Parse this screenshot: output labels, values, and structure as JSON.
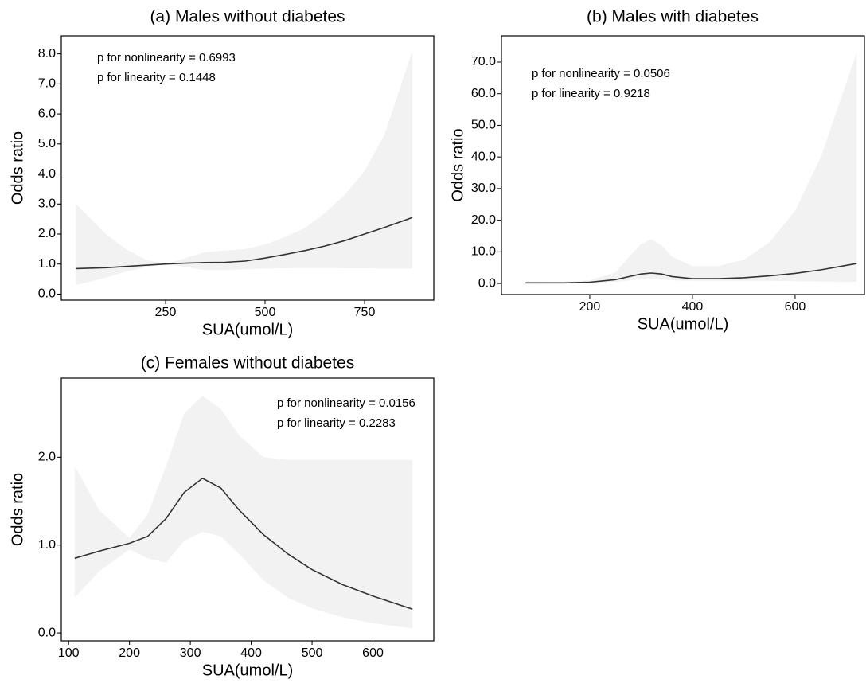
{
  "chart_data": [
    {
      "type": "line",
      "title": "(a) Males without diabetes",
      "x_label": "SUA(umol/L)",
      "y_label": "Odds ratio",
      "annotations": [
        "p for nonlinearity = 0.6993",
        "p for linearity = 0.1448"
      ],
      "x": [
        25,
        100,
        150,
        200,
        250,
        300,
        350,
        400,
        450,
        500,
        550,
        600,
        650,
        700,
        750,
        800,
        870
      ],
      "values": [
        0.85,
        0.88,
        0.92,
        0.96,
        1.0,
        1.03,
        1.05,
        1.06,
        1.1,
        1.2,
        1.32,
        1.45,
        1.6,
        1.78,
        2.0,
        2.22,
        2.55
      ],
      "lower": [
        0.3,
        0.55,
        0.75,
        0.9,
        1.0,
        0.9,
        0.8,
        0.8,
        0.83,
        0.85,
        0.86,
        0.87,
        0.87,
        0.86,
        0.86,
        0.85,
        0.85
      ],
      "upper": [
        3.0,
        2.0,
        1.5,
        1.15,
        1.0,
        1.2,
        1.4,
        1.45,
        1.5,
        1.65,
        1.9,
        2.2,
        2.7,
        3.3,
        4.1,
        5.3,
        8.1
      ],
      "color": "#333333",
      "band_color": "#f2f2f2",
      "xlim": [
        -12,
        924
      ],
      "xticks": [
        250,
        500,
        750
      ],
      "ylim": [
        -0.2,
        8.6
      ],
      "yticks": [
        {
          "value": 0,
          "label": "0.0"
        },
        {
          "value": 1,
          "label": "1.0"
        },
        {
          "value": 2,
          "label": "2.0"
        },
        {
          "value": 3,
          "label": "3.0"
        },
        {
          "value": 4,
          "label": "4.0"
        },
        {
          "value": 5,
          "label": "5.0"
        },
        {
          "value": 6,
          "label": "6.0"
        },
        {
          "value": 7,
          "label": "7.0"
        },
        {
          "value": 8,
          "label": "8.0"
        }
      ]
    },
    {
      "type": "line",
      "title": "(b) Males with diabetes",
      "x_label": "SUA(umol/L)",
      "y_label": "Odds ratio",
      "annotations": [
        "p for nonlinearity = 0.0506",
        "p for linearity = 0.9218"
      ],
      "x": [
        75,
        150,
        200,
        250,
        280,
        300,
        320,
        340,
        360,
        400,
        450,
        500,
        550,
        600,
        650,
        720
      ],
      "values": [
        0.2,
        0.2,
        0.4,
        1.2,
        2.3,
        3.0,
        3.3,
        3.0,
        2.2,
        1.5,
        1.5,
        1.8,
        2.4,
        3.2,
        4.3,
        6.3
      ],
      "lower": [
        0.0,
        0.0,
        0.1,
        0.5,
        1.0,
        1.2,
        1.3,
        1.2,
        1.0,
        0.8,
        0.8,
        0.8,
        0.8,
        0.7,
        0.6,
        0.5
      ],
      "upper": [
        0.6,
        0.5,
        1.0,
        3.5,
        9.0,
        12.5,
        14.0,
        12.0,
        8.5,
        5.5,
        5.5,
        7.5,
        13,
        23,
        40,
        73
      ],
      "color": "#333333",
      "band_color": "#f2f2f2",
      "xlim": [
        28,
        735
      ],
      "xticks": [
        200,
        400,
        600
      ],
      "ylim": [
        -3.5,
        78.3
      ],
      "yticks": [
        {
          "value": 0,
          "label": "0.0"
        },
        {
          "value": 10,
          "label": "10.0"
        },
        {
          "value": 20,
          "label": "20.0"
        },
        {
          "value": 30,
          "label": "30.0"
        },
        {
          "value": 40,
          "label": "40.0"
        },
        {
          "value": 50,
          "label": "50.0"
        },
        {
          "value": 60,
          "label": "60.0"
        },
        {
          "value": 70,
          "label": "70.0"
        }
      ]
    },
    {
      "type": "line",
      "title": "(c) Females without diabetes",
      "x_label": "SUA(umol/L)",
      "y_label": "Odds ratio",
      "annotations": [
        "p for nonlinearity = 0.0156",
        "p for linearity = 0.2283"
      ],
      "x": [
        110,
        150,
        200,
        230,
        260,
        290,
        320,
        350,
        380,
        420,
        460,
        500,
        550,
        600,
        665
      ],
      "values": [
        0.85,
        0.93,
        1.02,
        1.1,
        1.3,
        1.6,
        1.76,
        1.65,
        1.4,
        1.12,
        0.9,
        0.72,
        0.55,
        0.42,
        0.27
      ],
      "lower": [
        0.4,
        0.7,
        0.95,
        0.85,
        0.8,
        1.05,
        1.15,
        1.1,
        0.9,
        0.6,
        0.4,
        0.28,
        0.18,
        0.11,
        0.05
      ],
      "upper": [
        1.9,
        1.4,
        1.08,
        1.35,
        1.9,
        2.5,
        2.7,
        2.55,
        2.25,
        2.0,
        1.97,
        1.97,
        1.97,
        1.97,
        1.97
      ],
      "color": "#333333",
      "band_color": "#f2f2f2",
      "xlim": [
        88,
        700
      ],
      "xticks": [
        100,
        200,
        300,
        400,
        500,
        600
      ],
      "ylim": [
        -0.09,
        2.9
      ],
      "yticks": [
        {
          "value": 0,
          "label": "0.0"
        },
        {
          "value": 1,
          "label": "1.0"
        },
        {
          "value": 2,
          "label": "2.0"
        }
      ]
    }
  ]
}
